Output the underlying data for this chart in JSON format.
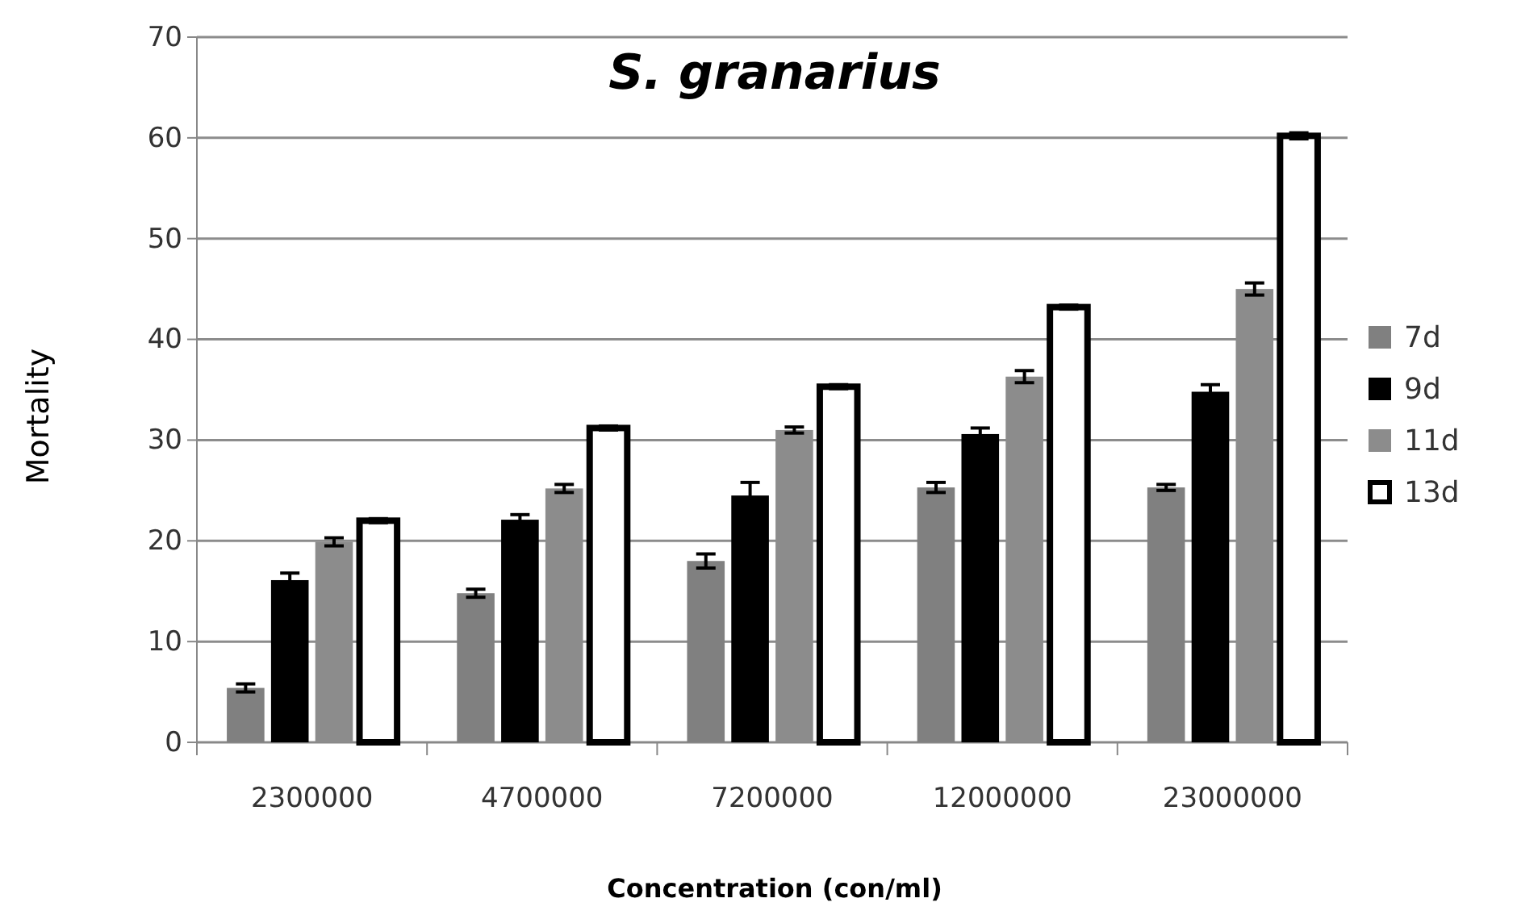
{
  "chart_data": {
    "type": "bar",
    "title": "S. granarius",
    "xlabel": "Concentration (con/ml)",
    "ylabel": "Mortality",
    "categories": [
      "2300000",
      "4700000",
      "7200000",
      "12000000",
      "23000000"
    ],
    "series": [
      {
        "name": "7d",
        "color": "#808080",
        "values": [
          5.4,
          14.8,
          18.0,
          25.3,
          25.3
        ],
        "errors": [
          0.4,
          0.4,
          0.7,
          0.5,
          0.3
        ]
      },
      {
        "name": "9d",
        "color": "#000000",
        "values": [
          16.1,
          22.1,
          24.5,
          30.6,
          34.8
        ],
        "errors": [
          0.7,
          0.5,
          1.3,
          0.6,
          0.7
        ]
      },
      {
        "name": "11d",
        "color": "#8c8c8c",
        "values": [
          19.9,
          25.2,
          31.0,
          36.3,
          45.0
        ],
        "errors": [
          0.4,
          0.4,
          0.3,
          0.6,
          0.6
        ]
      },
      {
        "name": "13d",
        "color": "#ffffff",
        "values": [
          22.0,
          31.2,
          35.3,
          43.2,
          60.2
        ],
        "errors": [
          0.2,
          0.2,
          0.2,
          0.2,
          0.3
        ]
      }
    ],
    "ylim": [
      0,
      70
    ],
    "yticks": [
      0,
      10,
      20,
      30,
      40,
      50,
      60,
      70
    ],
    "grid": "y",
    "legend": "right"
  }
}
